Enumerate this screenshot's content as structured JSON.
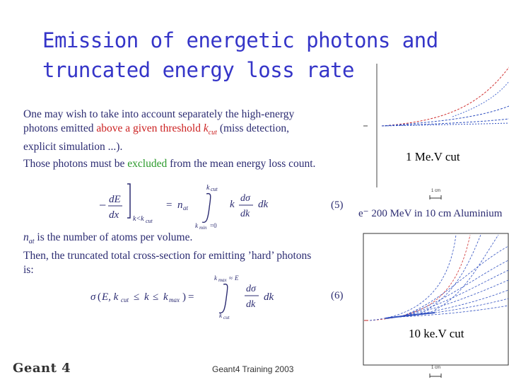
{
  "slide": {
    "title_line1": "Emission of energetic photons and",
    "title_line2": "truncated energy loss rate",
    "para1_a": "One may wish to take into account separately the high-energy",
    "para1_b_pre": "photons emitted ",
    "para1_b_red": "above a given threshold",
    "para1_b_kcut": "k",
    "para1_b_kcut_sub": "cut",
    "para1_b_post": "   (miss detection,",
    "para1_c": "explicit simulation ...).",
    "para2_pre": "Those photons must be ",
    "para2_green": "excluded",
    "para2_post": " from the mean energy loss count.",
    "eq5_number": "(5)",
    "natoms_line": "is the number of atoms per volume.",
    "natoms_symbol": "n",
    "natoms_sub": "at",
    "then_line1": "Then, the truncated total cross-section for emitting ’hard’ photons",
    "then_line2": "is:",
    "eq6_number": "(6)",
    "cut_label_top": "1 Me.V cut",
    "cut_label_bottom": "10 ke.V cut",
    "electron_label": "e⁻  200 MeV in 10 cm Aluminium",
    "scale_label": "1 cm",
    "logo_text": "Geant 4",
    "footer": "Geant4 Training 2003"
  }
}
